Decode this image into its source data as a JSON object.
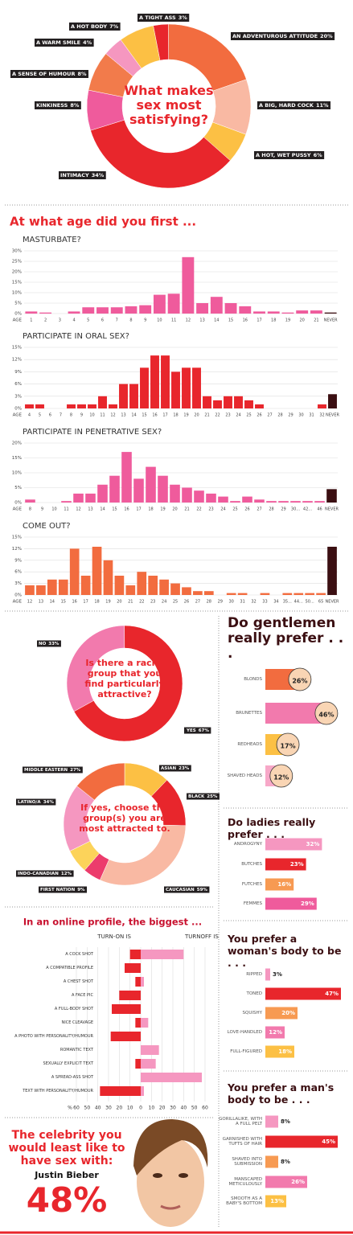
{
  "chart_data": [
    {
      "type": "donut",
      "title": "What makes sex most satisfying?",
      "categories": [
        "A TIGHT ASS",
        "AN ADVENTUROUS ATTITUDE",
        "A BIG, HARD COCK",
        "A HOT, WET PUSSY",
        "INTIMACY",
        "KINKINESS",
        "A SENSE OF HUMOUR",
        "A WARM SMILE",
        "A HOT BODY"
      ],
      "values": [
        3,
        20,
        11,
        6,
        34,
        8,
        8,
        4,
        7
      ],
      "value_labels": [
        "3%",
        "20%",
        "11%",
        "6%",
        "34%",
        "8%",
        "8%",
        "4%",
        "7%"
      ],
      "colors": [
        "#e8262c",
        "#f26c3f",
        "#f9b9a3",
        "#fcc044",
        "#e8262c",
        "#ef5b9c",
        "#f27b4b",
        "#f597c0",
        "#fcc044"
      ]
    },
    {
      "type": "bar",
      "heading": "At what age did you first ...",
      "title": "MASTURBATE?",
      "x_label": "AGE",
      "categories": [
        "1",
        "2",
        "3",
        "4",
        "5",
        "6",
        "7",
        "8",
        "9",
        "10",
        "11",
        "12",
        "13",
        "14",
        "15",
        "16",
        "17",
        "18",
        "19",
        "20",
        "21",
        "NEVER"
      ],
      "values": [
        1,
        0.5,
        0,
        1,
        3,
        3,
        3,
        3.5,
        4,
        9,
        9.5,
        27,
        5,
        8,
        5,
        3.5,
        1,
        1,
        0.5,
        1.5,
        1.5,
        0.5
      ],
      "color": "#ef5b9c",
      "never_color": "#3b0f12",
      "ylim": [
        0,
        30
      ],
      "yticks": [
        {
          "value": 0,
          "label": "0%"
        },
        {
          "value": 5,
          "label": "5%"
        },
        {
          "value": 10,
          "label": "10%"
        },
        {
          "value": 15,
          "label": "15%"
        },
        {
          "value": 20,
          "label": "20%"
        },
        {
          "value": 25,
          "label": "25%"
        },
        {
          "value": 30,
          "label": "30%"
        }
      ],
      "grid": true
    },
    {
      "type": "bar",
      "title": "PARTICIPATE IN ORAL SEX?",
      "x_label": "AGE",
      "categories": [
        "4",
        "5",
        "6",
        "7",
        "8",
        "9",
        "10",
        "11",
        "12",
        "13",
        "14",
        "15",
        "16",
        "17",
        "18",
        "19",
        "20",
        "21",
        "22",
        "23",
        "24",
        "25",
        "26",
        "27",
        "28",
        "29",
        "30",
        "31",
        "32",
        "NEVER"
      ],
      "values": [
        1,
        1,
        0,
        0,
        1,
        1,
        1,
        3,
        1,
        6,
        6,
        10,
        13,
        13,
        9,
        10,
        10,
        3,
        2,
        3,
        3,
        2,
        1,
        0,
        0,
        0,
        0,
        0,
        1,
        3.5
      ],
      "color": "#e8262c",
      "never_color": "#3b0f12",
      "ylim": [
        0,
        15
      ],
      "yticks": [
        {
          "value": 0,
          "label": "0%"
        },
        {
          "value": 3,
          "label": "3%"
        },
        {
          "value": 6,
          "label": "6%"
        },
        {
          "value": 9,
          "label": "9%"
        },
        {
          "value": 12,
          "label": "12%"
        },
        {
          "value": 15,
          "label": "15%"
        }
      ],
      "grid": true
    },
    {
      "type": "bar",
      "title": "PARTICIPATE IN PENETRATIVE SEX?",
      "x_label": "AGE",
      "categories": [
        "8",
        "9",
        "10",
        "11",
        "12",
        "13",
        "14",
        "15",
        "16",
        "17",
        "18",
        "19",
        "20",
        "21",
        "22",
        "23",
        "24",
        "25",
        "26",
        "27",
        "28",
        "29",
        "30...",
        "42...",
        "46",
        "NEVER"
      ],
      "values": [
        1,
        0,
        0,
        0.5,
        3,
        3,
        6,
        9,
        17,
        8,
        12,
        9,
        6,
        5,
        4,
        3,
        2,
        0.5,
        2,
        1,
        0.5,
        0.5,
        0.5,
        0.5,
        0.5,
        4.5
      ],
      "color": "#ef5b9c",
      "never_color": "#3b0f12",
      "ylim": [
        0,
        20
      ],
      "yticks": [
        {
          "value": 0,
          "label": "0%"
        },
        {
          "value": 5,
          "label": "5%"
        },
        {
          "value": 10,
          "label": "10%"
        },
        {
          "value": 15,
          "label": "15%"
        },
        {
          "value": 20,
          "label": "20%"
        }
      ],
      "grid": true
    },
    {
      "type": "bar",
      "title": "COME OUT?",
      "x_label": "AGE",
      "categories": [
        "12",
        "13",
        "14",
        "15",
        "16",
        "17",
        "18",
        "19",
        "20",
        "21",
        "22",
        "23",
        "24",
        "25",
        "26",
        "27",
        "28",
        "29",
        "30",
        "31",
        "32",
        "33",
        "34",
        "35...",
        "44...",
        "50...",
        "65",
        "NEVER"
      ],
      "values": [
        2.5,
        2.5,
        4,
        4,
        12,
        5,
        12.5,
        9,
        5,
        2.5,
        6,
        5,
        4,
        3,
        2,
        1,
        1,
        0,
        0.5,
        0.5,
        0,
        0.5,
        0,
        0.5,
        0.5,
        0.5,
        0.5,
        12.5
      ],
      "color": "#f26c3f",
      "never_color": "#3b0f12",
      "ylim": [
        0,
        15
      ],
      "yticks": [
        {
          "value": 0,
          "label": "0%"
        },
        {
          "value": 3,
          "label": "3%"
        },
        {
          "value": 6,
          "label": "6%"
        },
        {
          "value": 9,
          "label": "9%"
        },
        {
          "value": 12,
          "label": "12%"
        },
        {
          "value": 15,
          "label": "15%"
        }
      ],
      "grid": true
    },
    {
      "type": "donut",
      "title": "Is there a racial group that you find particularly attractive?",
      "categories": [
        "NO",
        "YES"
      ],
      "values": [
        33,
        67
      ],
      "value_labels": [
        "33%",
        "67%"
      ],
      "colors": [
        "#f27aad",
        "#e8262c"
      ]
    },
    {
      "type": "donut",
      "title": "If yes, choose the group(s) you are most attracted to.",
      "categories": [
        "ASIAN",
        "BLACK",
        "CAUCASIAN",
        "FIRST NATION",
        "INDO-CANADIAN",
        "LATINO/A",
        "MIDDLE EASTERN"
      ],
      "values": [
        23,
        25,
        59,
        9,
        12,
        34,
        27
      ],
      "value_labels": [
        "23%",
        "25%",
        "59%",
        "9%",
        "12%",
        "34%",
        "27%"
      ],
      "colors": [
        "#fcc044",
        "#e8262c",
        "#f9b9a3",
        "#ec3c6c",
        "#fcd35a",
        "#f597c0",
        "#f26c3f"
      ]
    },
    {
      "type": "hbar",
      "title": "Do gentlemen really prefer . . .",
      "categories": [
        "BLONDS",
        "BRUNETTES",
        "REDHEADS",
        "SHAVED HEADS"
      ],
      "values": [
        26,
        46,
        17,
        12
      ],
      "value_labels": [
        "26%",
        "46%",
        "17%",
        "12%"
      ],
      "colors": [
        "#f26c3f",
        "#f27aad",
        "#fcc044",
        "#f7a8c8"
      ]
    },
    {
      "type": "hbar",
      "title": "Do ladies really prefer . . .",
      "categories": [
        "ANDROGYNY",
        "BUTCHES",
        "FUTCHES",
        "FEMMES"
      ],
      "values": [
        32,
        23,
        16,
        29
      ],
      "value_labels": [
        "32%",
        "23%",
        "16%",
        "29%"
      ],
      "colors": [
        "#f597c0",
        "#e8262c",
        "#f79a52",
        "#ef5b9c"
      ]
    },
    {
      "type": "diverging",
      "title": "In an online profile, the biggest ...",
      "x_label": "%",
      "categories": [
        "A COCK SHOT",
        "A COMPATIBLE PROFILE",
        "A CHEST SHOT",
        "A FACE PIC",
        "A FULL-BODY SHOT",
        "NICE CLEAVAGE",
        "A PHOTO WITH PERSONALITY/HUMOUR",
        "ROMANTIC TEXT",
        "SEXUALLY EXPLICIT TEXT",
        "A SPREAD-ASS SHOT",
        "TEXT WITH PERSONALITY/HUMOUR"
      ],
      "series": [
        {
          "name": "TURN-ON IS",
          "color": "#e8262c",
          "values": [
            10,
            15,
            5,
            20,
            27,
            5,
            28,
            0,
            5,
            0,
            38
          ]
        },
        {
          "name": "TURNOFF IS",
          "color": "#f597c0",
          "values": [
            40,
            0,
            3,
            0,
            0,
            7,
            0,
            17,
            14,
            57,
            3
          ]
        }
      ],
      "xlim": [
        0,
        60
      ],
      "xticks": [
        0,
        10,
        20,
        30,
        40,
        50,
        60
      ],
      "grid": true
    },
    {
      "type": "hbar",
      "title": "You prefer a woman's body to be . . .",
      "categories": [
        "RIPPED",
        "TONED",
        "SQUISHY",
        "LOVE-HANDLED",
        "FULL-FIGURED"
      ],
      "values": [
        3,
        47,
        20,
        12,
        18
      ],
      "value_labels": [
        "3%",
        "47%",
        "20%",
        "12%",
        "18%"
      ],
      "colors": [
        "#f597c0",
        "#e8262c",
        "#f79a52",
        "#f27aad",
        "#fcc044"
      ]
    },
    {
      "type": "hbar",
      "title": "You prefer a man's body to be . . .",
      "categories": [
        "GORILLALIKE, WITH A FULL PELT",
        "GARNISHED WITH TUFTS OF HAIR",
        "SHAVED INTO SUBMISSION",
        "MANSCAPED METICULOUSLY",
        "SMOOTH AS A BABY'S BOTTOM"
      ],
      "values": [
        8,
        45,
        8,
        26,
        13
      ],
      "value_labels": [
        "8%",
        "45%",
        "8%",
        "26%",
        "13%"
      ],
      "colors": [
        "#f597c0",
        "#e8262c",
        "#f79a52",
        "#f27aad",
        "#fcc044"
      ]
    }
  ],
  "celebrity": {
    "title": "The celebrity you would least like to have sex with:",
    "name": "Justin Bieber",
    "percent": "48%"
  }
}
